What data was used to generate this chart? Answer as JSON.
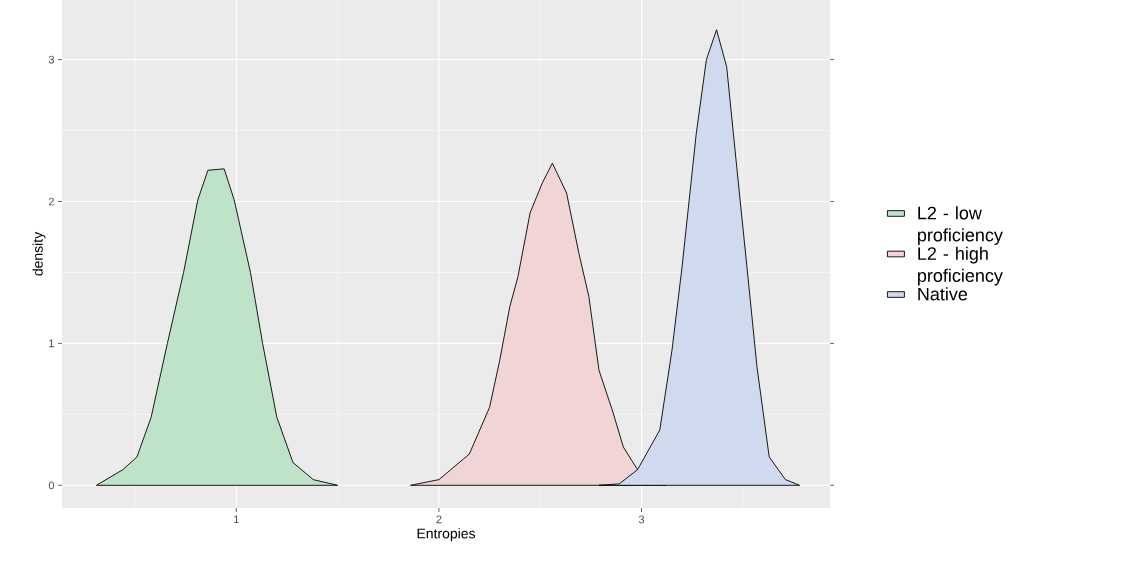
{
  "chart_data": {
    "type": "area",
    "xlabel": "Entropies",
    "ylabel": "density",
    "xlim": [
      0.14,
      3.93
    ],
    "ylim": [
      -0.16,
      3.42
    ],
    "xticks": [
      1,
      2,
      3
    ],
    "yticks": [
      0,
      1,
      2,
      3
    ],
    "grid": true,
    "legend": "right",
    "series": [
      {
        "name": "L2 - low proficiency",
        "color": "#bfe3c8",
        "x": [
          0.31,
          0.44,
          0.51,
          0.58,
          0.66,
          0.74,
          0.81,
          0.86,
          0.94,
          0.99,
          1.07,
          1.13,
          1.2,
          1.28,
          1.38,
          1.5
        ],
        "values": [
          0,
          0.11,
          0.2,
          0.48,
          1.0,
          1.5,
          2.01,
          2.22,
          2.23,
          2.01,
          1.5,
          1.0,
          0.48,
          0.16,
          0.04,
          0
        ]
      },
      {
        "name": "L2 - high proficiency",
        "color": "#f1d4d5",
        "x": [
          1.86,
          2.0,
          2.15,
          2.25,
          2.3,
          2.35,
          2.39,
          2.45,
          2.51,
          2.56,
          2.63,
          2.69,
          2.74,
          2.79,
          2.86,
          2.91,
          2.98,
          3.07,
          3.12
        ],
        "values": [
          0,
          0.04,
          0.22,
          0.55,
          0.88,
          1.26,
          1.47,
          1.92,
          2.13,
          2.27,
          2.06,
          1.64,
          1.33,
          0.81,
          0.51,
          0.27,
          0.11,
          0.01,
          0
        ]
      },
      {
        "name": "Native",
        "color": "#cfdaee",
        "x": [
          2.79,
          2.89,
          2.98,
          3.09,
          3.15,
          3.2,
          3.27,
          3.32,
          3.37,
          3.42,
          3.47,
          3.52,
          3.57,
          3.63,
          3.71,
          3.78
        ],
        "values": [
          0,
          0.01,
          0.11,
          0.39,
          0.95,
          1.54,
          2.48,
          3.0,
          3.21,
          2.95,
          2.24,
          1.54,
          0.83,
          0.2,
          0.04,
          0
        ]
      }
    ]
  }
}
